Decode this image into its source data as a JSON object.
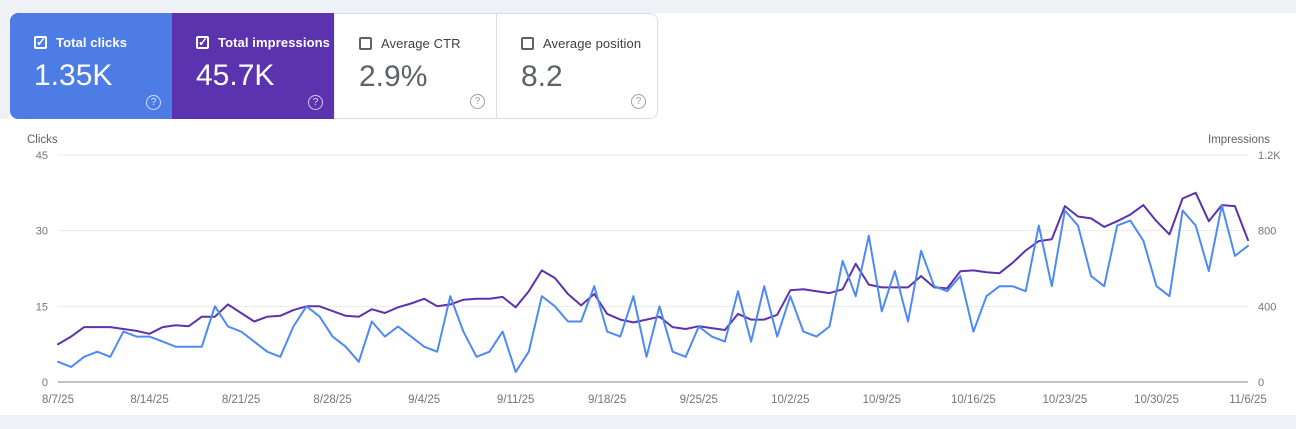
{
  "cards": [
    {
      "label": "Total clicks",
      "value": "1.35K",
      "checked": true,
      "style": "blue"
    },
    {
      "label": "Total impressions",
      "value": "45.7K",
      "checked": true,
      "style": "purple"
    },
    {
      "label": "Average CTR",
      "value": "2.9%",
      "checked": false,
      "style": "white"
    },
    {
      "label": "Average position",
      "value": "8.2",
      "checked": false,
      "style": "white"
    }
  ],
  "help_icon_glyph": "?",
  "colors": {
    "clicks_card": "#4d7ce4",
    "impressions_card": "#5c33ae",
    "clicks_line": "#4e8af4",
    "impressions_line": "#5c33ab",
    "gridline": "#e8eaed",
    "axis_line": "#80868b",
    "tick_text": "#757575",
    "axis_title_text": "#5f6368"
  },
  "chart_data": {
    "type": "line",
    "x_tick_labels": [
      "8/7/25",
      "8/14/25",
      "8/21/25",
      "8/28/25",
      "9/4/25",
      "9/11/25",
      "9/18/25",
      "9/25/25",
      "10/2/25",
      "10/9/25",
      "10/16/25",
      "10/23/25",
      "10/30/25",
      "11/6/25"
    ],
    "tick_every": 7,
    "x": [
      "8/7/25",
      "8/8/25",
      "8/9/25",
      "8/10/25",
      "8/11/25",
      "8/12/25",
      "8/13/25",
      "8/14/25",
      "8/15/25",
      "8/16/25",
      "8/17/25",
      "8/18/25",
      "8/19/25",
      "8/20/25",
      "8/21/25",
      "8/22/25",
      "8/23/25",
      "8/24/25",
      "8/25/25",
      "8/26/25",
      "8/27/25",
      "8/28/25",
      "8/29/25",
      "8/30/25",
      "8/31/25",
      "9/1/25",
      "9/2/25",
      "9/3/25",
      "9/4/25",
      "9/5/25",
      "9/6/25",
      "9/7/25",
      "9/8/25",
      "9/9/25",
      "9/10/25",
      "9/11/25",
      "9/12/25",
      "9/13/25",
      "9/14/25",
      "9/15/25",
      "9/16/25",
      "9/17/25",
      "9/18/25",
      "9/19/25",
      "9/20/25",
      "9/21/25",
      "9/22/25",
      "9/23/25",
      "9/24/25",
      "9/25/25",
      "9/26/25",
      "9/27/25",
      "9/28/25",
      "9/29/25",
      "9/30/25",
      "10/1/25",
      "10/2/25",
      "10/3/25",
      "10/4/25",
      "10/5/25",
      "10/6/25",
      "10/7/25",
      "10/8/25",
      "10/9/25",
      "10/10/25",
      "10/11/25",
      "10/12/25",
      "10/13/25",
      "10/14/25",
      "10/15/25",
      "10/16/25",
      "10/17/25",
      "10/18/25",
      "10/19/25",
      "10/20/25",
      "10/21/25",
      "10/22/25",
      "10/23/25",
      "10/24/25",
      "10/25/25",
      "10/26/25",
      "10/27/25",
      "10/28/25",
      "10/29/25",
      "10/30/25",
      "10/31/25",
      "11/1/25",
      "11/2/25",
      "11/3/25",
      "11/4/25",
      "11/5/25",
      "11/6/25"
    ],
    "series": [
      {
        "name": "Clicks",
        "axis": "left",
        "color": "#4e8af4",
        "values": [
          4,
          3,
          5,
          6,
          5,
          10,
          9,
          9,
          8,
          7,
          7,
          7,
          15,
          11,
          10,
          8,
          6,
          5,
          11,
          15,
          13,
          9,
          7,
          4,
          12,
          9,
          11,
          9,
          7,
          6,
          17,
          10,
          5,
          6,
          10,
          2,
          6,
          17,
          15,
          12,
          12,
          19,
          10,
          9,
          17,
          5,
          15,
          6,
          5,
          11,
          9,
          8,
          18,
          8,
          19,
          9,
          17,
          10,
          9,
          11,
          24,
          17,
          29,
          14,
          22,
          12,
          26,
          19,
          18,
          21,
          10,
          17,
          19,
          19,
          18,
          31,
          19,
          34,
          31,
          21,
          19,
          31,
          32,
          28,
          19,
          17,
          34,
          31,
          22,
          35,
          25,
          27
        ]
      },
      {
        "name": "Impressions",
        "axis": "right",
        "color": "#5c33ab",
        "values": [
          200,
          240,
          290,
          290,
          290,
          280,
          270,
          255,
          290,
          300,
          295,
          345,
          345,
          410,
          365,
          320,
          345,
          350,
          380,
          400,
          400,
          375,
          350,
          345,
          385,
          365,
          395,
          415,
          440,
          400,
          410,
          435,
          440,
          440,
          450,
          395,
          480,
          590,
          550,
          465,
          405,
          465,
          360,
          330,
          315,
          330,
          345,
          290,
          280,
          295,
          285,
          275,
          360,
          330,
          330,
          355,
          485,
          490,
          480,
          470,
          490,
          625,
          515,
          500,
          500,
          500,
          560,
          500,
          495,
          585,
          590,
          580,
          575,
          630,
          695,
          745,
          755,
          930,
          875,
          865,
          820,
          850,
          885,
          935,
          850,
          780,
          970,
          1000,
          850,
          935,
          930,
          750
        ]
      }
    ],
    "left_axis": {
      "title": "Clicks",
      "min": 0,
      "max": 45,
      "ticks": [
        {
          "value": 45,
          "label": "45"
        },
        {
          "value": 30,
          "label": "30"
        },
        {
          "value": 15,
          "label": "15"
        },
        {
          "value": 0,
          "label": "0"
        }
      ]
    },
    "right_axis": {
      "title": "Impressions",
      "min": 0,
      "max": 1200,
      "ticks": [
        {
          "value": 1200,
          "label": "1.2K"
        },
        {
          "value": 800,
          "label": "800"
        },
        {
          "value": 400,
          "label": "400"
        },
        {
          "value": 0,
          "label": "0"
        }
      ]
    },
    "grid": "horizontal",
    "legend": "none"
  }
}
